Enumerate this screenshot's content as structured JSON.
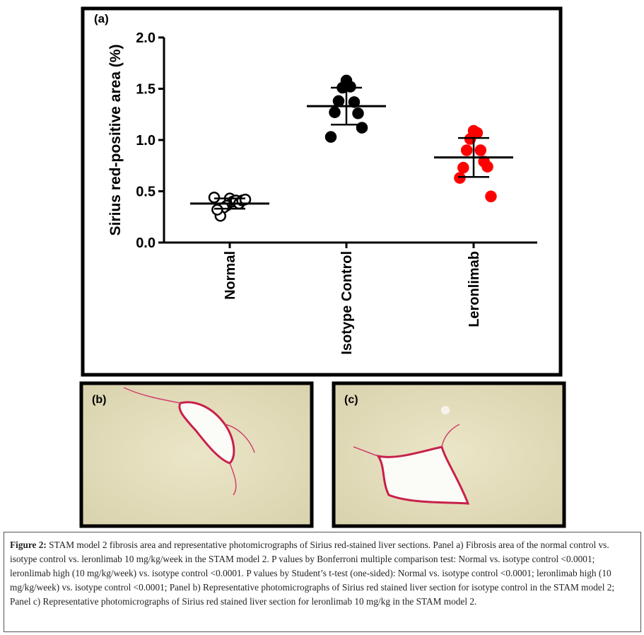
{
  "chart_data": {
    "type": "scatter",
    "panel_label": "(a)",
    "ylabel": "Sirius red-positive area (%)",
    "categories": [
      "Normal",
      "Isotype Control",
      "Leronlimab"
    ],
    "ylim": [
      0,
      2.0
    ],
    "yticks": [
      {
        "value": 0,
        "label": "0.0"
      },
      {
        "value": 0.5,
        "label": "0.5"
      },
      {
        "value": 1.0,
        "label": "1.0"
      },
      {
        "value": 1.5,
        "label": "1.5"
      },
      {
        "value": 2.0,
        "label": "2.0"
      }
    ],
    "groups": [
      {
        "values": [
          0.43,
          0.4,
          0.36,
          0.41,
          0.34,
          0.38,
          0.26,
          0.41,
          0.32,
          0.42,
          0.44
        ],
        "mean": 0.38,
        "sd": 0.05,
        "color": "#000000",
        "fill": "#ffffff"
      },
      {
        "values": [
          1.58,
          1.52,
          1.51,
          1.37,
          1.38,
          1.26,
          1.27,
          1.12,
          1.03
        ],
        "mean": 1.33,
        "sd": 0.18,
        "color": "#000000",
        "fill": "#000000"
      },
      {
        "values": [
          1.09,
          1.07,
          1.01,
          0.9,
          0.9,
          0.79,
          0.73,
          0.74,
          0.63,
          0.45
        ],
        "mean": 0.83,
        "sd": 0.19,
        "color": "#ff0000",
        "fill": "#ff0000"
      }
    ]
  },
  "panels": [
    {
      "label": "(b)"
    },
    {
      "label": "(c)"
    }
  ],
  "caption": {
    "label": "Figure 2:",
    "text": "STAM model 2 fibrosis area and representative photomicrographs of Sirius red-stained liver sections. Panel a) Fibrosis area of the normal control vs. isotype control vs. leronlimab 10 mg/kg/week in the STAM model 2. P values by Bonferroni multiple comparison test: Normal vs. isotype control <0.0001; leronlimab high (10 mg/kg/week) vs. isotype control <0.0001. P values by Student’s t-test (one-sided): Normal vs. isotype control <0.0001; leronlimab high (10 mg/kg/week) vs. isotype control <0.0001; Panel b) Representative photomicrographs of Sirius red stained liver section for isotype control in the STAM model 2; Panel c) Representative photomicrographs of Sirius red stained liver section for leronlimab 10 mg/kg in the STAM model 2."
  }
}
